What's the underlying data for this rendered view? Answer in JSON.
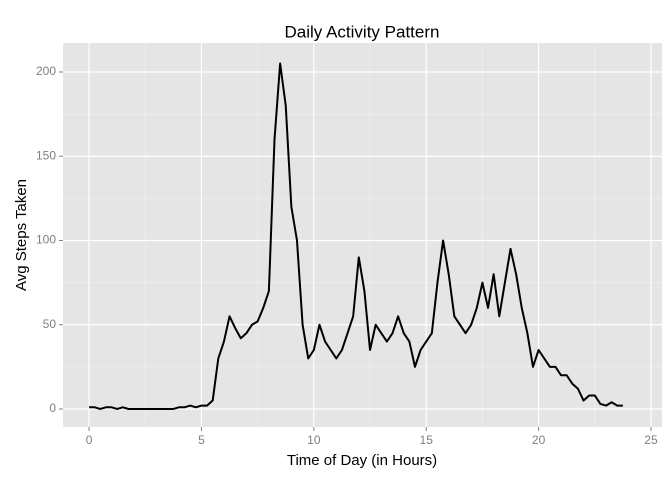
{
  "chart_data": {
    "type": "line",
    "title": "Daily Activity Pattern",
    "x_label": "Time of Day (in Hours)",
    "y_label": "Avg Steps Taken",
    "x": [
      0,
      0.25,
      0.5,
      0.75,
      1,
      1.25,
      1.5,
      1.75,
      2,
      2.25,
      2.5,
      2.75,
      3,
      3.25,
      3.5,
      3.75,
      4,
      4.25,
      4.5,
      4.75,
      5,
      5.25,
      5.5,
      5.75,
      6,
      6.25,
      6.5,
      6.75,
      7,
      7.25,
      7.5,
      7.75,
      8,
      8.25,
      8.5,
      8.75,
      9,
      9.25,
      9.5,
      9.75,
      10,
      10.25,
      10.5,
      10.75,
      11,
      11.25,
      11.5,
      11.75,
      12,
      12.25,
      12.5,
      12.75,
      13,
      13.25,
      13.5,
      13.75,
      14,
      14.25,
      14.5,
      14.75,
      15,
      15.25,
      15.5,
      15.75,
      16,
      16.25,
      16.5,
      16.75,
      17,
      17.25,
      17.5,
      17.75,
      18,
      18.25,
      18.5,
      18.75,
      19,
      19.25,
      19.5,
      19.75,
      20,
      20.25,
      20.5,
      20.75,
      21,
      21.25,
      21.5,
      21.75,
      22,
      22.25,
      22.5,
      22.75,
      23,
      23.25,
      23.5,
      23.75
    ],
    "series": [
      {
        "name": "Avg Steps",
        "color": "#000000",
        "values": [
          1,
          1,
          0,
          1,
          1,
          0,
          1,
          0,
          0,
          0,
          0,
          0,
          0,
          0,
          0,
          0,
          1,
          1,
          2,
          1,
          2,
          2,
          5,
          30,
          40,
          55,
          48,
          42,
          45,
          50,
          52,
          60,
          70,
          160,
          205,
          180,
          120,
          100,
          50,
          30,
          35,
          50,
          40,
          35,
          30,
          35,
          45,
          55,
          90,
          70,
          35,
          50,
          45,
          40,
          45,
          55,
          45,
          40,
          25,
          35,
          40,
          45,
          75,
          100,
          80,
          55,
          50,
          45,
          50,
          60,
          75,
          60,
          80,
          55,
          75,
          95,
          80,
          60,
          45,
          25,
          35,
          30,
          25,
          25,
          20,
          20,
          15,
          12,
          5,
          8,
          8,
          3,
          2,
          4,
          2,
          2
        ]
      }
    ],
    "xlim": [
      -1.16,
      25.49
    ],
    "ylim": [
      -10.7,
      217.2
    ],
    "xticks": [
      0,
      5,
      10,
      15,
      20,
      25
    ],
    "yticks": [
      0,
      50,
      100,
      150,
      200
    ],
    "grid": true
  }
}
